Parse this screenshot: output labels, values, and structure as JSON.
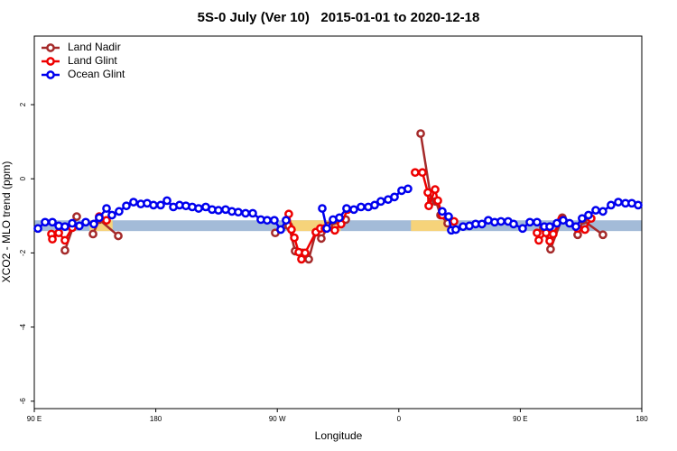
{
  "chart_data": {
    "type": "line",
    "title": "5S-0 July (Ver 10)   2015-01-01 to 2020-12-18",
    "x_label": "Longitude",
    "y_label": "XCO2 - MLO trend (ppm)",
    "xlim": [
      90,
      540
    ],
    "ylim": [
      -6.2,
      3.85
    ],
    "xticks": [
      {
        "value": 90,
        "label": "90 E"
      },
      180,
      {
        "value": 270,
        "label": "90 W"
      },
      {
        "value": 360,
        "label": "0"
      },
      {
        "value": 450,
        "label": "90 E"
      },
      {
        "value": 540,
        "label": "180"
      }
    ],
    "yticks": [
      -6,
      -4,
      -2,
      0,
      2
    ],
    "legend": "top-left",
    "band": {
      "ylim": [
        -1.41,
        -1.12
      ],
      "color": "#a3bbd8",
      "highlight_color": "#f6d37a",
      "highlights": [
        [
          131,
          148
        ],
        [
          279,
          317
        ],
        [
          369,
          399
        ]
      ]
    },
    "series": [
      {
        "name": "Land Nadir",
        "color": "#a52a2a",
        "x": [
          112.7,
          121.4,
          null,
          133.5,
          138.1,
          152.2,
          null,
          268.5,
          278.5,
          283.2,
          288.6,
          293.3,
          298.6,
          302.6,
          308.0,
          320.7,
          null,
          376.2,
          384.2,
          387.5,
          390.9,
          396.2,
          null,
          467.1,
          472.4,
          481.1,
          null,
          492.5,
          496.5,
          511.2
        ],
        "values": [
          -1.93,
          -1.02,
          null,
          -1.49,
          -1.1,
          -1.54,
          null,
          -1.46,
          -1.27,
          -1.95,
          -2.0,
          -2.17,
          -1.44,
          -1.61,
          -1.27,
          -1.1,
          null,
          1.22,
          -0.61,
          -0.61,
          -0.98,
          -1.2,
          null,
          -1.32,
          -1.9,
          -1.05,
          null,
          -1.51,
          -1.12,
          -1.51
        ]
      },
      {
        "name": "Land Glint",
        "color": "#ee0000",
        "x": [
          102.7,
          103.4,
          108.1,
          112.7,
          118.1,
          null,
          138.1,
          143.5,
          null,
          278.5,
          280.5,
          282.6,
          285.9,
          287.9,
          290.6,
          298.6,
          301.9,
          305.3,
          312.6,
          317.3,
          322.0,
          null,
          372.1,
          377.5,
          381.5,
          382.2,
          386.9,
          388.9,
          392.2,
          400.9,
          null,
          462.4,
          463.7,
          469.1,
          471.8,
          474.4,
          480.5,
          null,
          492.5,
          497.9,
          502.5
        ],
        "values": [
          -1.49,
          -1.63,
          -1.46,
          -1.66,
          -1.32,
          null,
          -1.02,
          -1.12,
          null,
          -0.95,
          -1.37,
          -1.59,
          -1.98,
          -2.17,
          -2.0,
          -1.44,
          -1.34,
          -1.34,
          -1.39,
          -1.22,
          -0.83,
          null,
          0.17,
          0.17,
          -0.37,
          -0.73,
          -0.29,
          -0.59,
          -0.98,
          -1.15,
          null,
          -1.46,
          -1.66,
          -1.46,
          -1.68,
          -1.49,
          -1.1,
          null,
          -1.34,
          -1.37,
          -1.07
        ]
      },
      {
        "name": "Ocean Glint",
        "color": "#0000ee",
        "x": [
          92.7,
          98.0,
          103.4,
          108.1,
          112.7,
          118.1,
          123.4,
          128.1,
          134.1,
          138.1,
          143.5,
          147.5,
          152.8,
          158.2,
          163.5,
          168.9,
          173.6,
          178.3,
          183.6,
          188.3,
          193.0,
          197.6,
          202.3,
          207.0,
          211.7,
          217.0,
          221.7,
          226.4,
          231.7,
          236.4,
          241.1,
          246.5,
          251.8,
          257.8,
          262.5,
          267.8,
          272.5,
          276.5,
          null,
          303.3,
          306.6,
          311.3,
          316.0,
          321.3,
          326.7,
          332.0,
          337.4,
          342.1,
          346.7,
          352.1,
          356.8,
          362.1,
          366.8,
          null,
          392.2,
          396.9,
          398.9,
          402.2,
          407.6,
          412.3,
          416.9,
          421.6,
          426.3,
          431.0,
          435.7,
          441.0,
          445.0,
          451.7,
          457.1,
          462.4,
          467.8,
          471.8,
          477.1,
          481.8,
          486.5,
          491.2,
          495.8,
          500.5,
          505.9,
          511.2,
          517.2,
          522.6,
          527.9,
          532.6,
          537.3
        ],
        "values": [
          -1.34,
          -1.17,
          -1.17,
          -1.27,
          -1.29,
          -1.2,
          -1.27,
          -1.17,
          -1.22,
          -1.05,
          -0.8,
          -0.98,
          -0.88,
          -0.73,
          -0.63,
          -0.68,
          -0.66,
          -0.71,
          -0.71,
          -0.59,
          -0.76,
          -0.71,
          -0.73,
          -0.76,
          -0.8,
          -0.76,
          -0.83,
          -0.85,
          -0.83,
          -0.88,
          -0.9,
          -0.93,
          -0.93,
          -1.1,
          -1.12,
          -1.12,
          -1.37,
          -1.12,
          null,
          -0.8,
          -1.34,
          -1.1,
          -1.05,
          -0.8,
          -0.83,
          -0.76,
          -0.76,
          -0.71,
          -0.61,
          -0.56,
          -0.49,
          -0.32,
          -0.27,
          null,
          -0.88,
          -1.02,
          -1.39,
          -1.37,
          -1.29,
          -1.27,
          -1.22,
          -1.22,
          -1.12,
          -1.17,
          -1.15,
          -1.15,
          -1.22,
          -1.34,
          -1.17,
          -1.17,
          -1.29,
          -1.29,
          -1.2,
          -1.12,
          -1.2,
          -1.29,
          -1.07,
          -0.98,
          -0.85,
          -0.88,
          -0.71,
          -0.63,
          -0.66,
          -0.66,
          -0.71
        ]
      }
    ]
  }
}
